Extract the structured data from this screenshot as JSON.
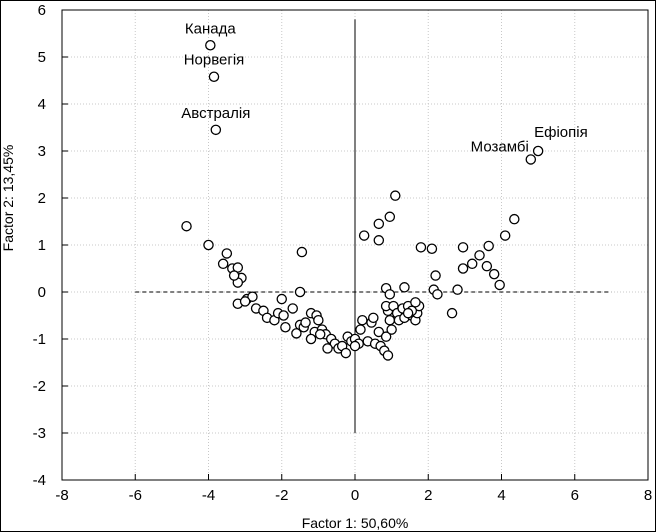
{
  "chart_data": {
    "type": "scatter",
    "xlabel": "Factor 1: 50,60%",
    "ylabel": "Factor 2: 13,45%",
    "xlim": [
      -8,
      8
    ],
    "ylim": [
      -4,
      6
    ],
    "x_ticks": [
      "-8",
      "-6",
      "-4",
      "-2",
      "0",
      "2",
      "4",
      "6",
      "8"
    ],
    "y_ticks": [
      "-4",
      "-3",
      "-2",
      "-1",
      "0",
      "1",
      "2",
      "3",
      "4",
      "5",
      "6"
    ],
    "grid": true,
    "reference_lines": {
      "horizontal": {
        "y": 0,
        "x_from": -6,
        "x_to": 7
      },
      "vertical": {
        "x": 0,
        "y_from": -3,
        "y_to": 5.8
      }
    },
    "annotations": [
      {
        "text": "Канада",
        "x": -3.95,
        "y": 5.25
      },
      {
        "text": "Норвегія",
        "x": -3.85,
        "y": 4.58
      },
      {
        "text": "Австралія",
        "x": -3.8,
        "y": 3.45
      },
      {
        "text": "Ефіопія",
        "x": 5.0,
        "y": 3.0
      },
      {
        "text": "Мозамбі",
        "x": 4.8,
        "y": 2.82
      }
    ],
    "points": [
      [
        -3.95,
        5.25
      ],
      [
        -3.85,
        4.58
      ],
      [
        -3.8,
        3.45
      ],
      [
        5.0,
        3.0
      ],
      [
        4.8,
        2.82
      ],
      [
        -4.6,
        1.4
      ],
      [
        -4.0,
        1.0
      ],
      [
        -3.5,
        0.82
      ],
      [
        -3.6,
        0.6
      ],
      [
        -3.35,
        0.5
      ],
      [
        -3.2,
        0.52
      ],
      [
        -3.1,
        0.3
      ],
      [
        -3.2,
        0.2
      ],
      [
        -3.3,
        0.35
      ],
      [
        -3.2,
        -0.25
      ],
      [
        -2.95,
        -0.15
      ],
      [
        -2.8,
        -0.1
      ],
      [
        -3.0,
        -0.2
      ],
      [
        -2.7,
        -0.35
      ],
      [
        -2.5,
        -0.4
      ],
      [
        -2.4,
        -0.55
      ],
      [
        -2.2,
        -0.6
      ],
      [
        -2.1,
        -0.45
      ],
      [
        -2.0,
        -0.15
      ],
      [
        -1.95,
        -0.5
      ],
      [
        -1.9,
        -0.75
      ],
      [
        -1.7,
        -0.35
      ],
      [
        -1.5,
        -0.7
      ],
      [
        -1.4,
        -0.75
      ],
      [
        -1.35,
        -0.65
      ],
      [
        -1.6,
        -0.88
      ],
      [
        -1.5,
        0.0
      ],
      [
        -1.45,
        0.85
      ],
      [
        -1.2,
        -0.45
      ],
      [
        -1.1,
        -0.85
      ],
      [
        -1.05,
        -0.5
      ],
      [
        -1.0,
        -0.6
      ],
      [
        -0.9,
        -0.8
      ],
      [
        -0.8,
        -0.9
      ],
      [
        -1.2,
        -1.0
      ],
      [
        -0.65,
        -1.0
      ],
      [
        -0.55,
        -1.1
      ],
      [
        -0.45,
        -1.2
      ],
      [
        -0.35,
        -1.15
      ],
      [
        -0.25,
        -1.3
      ],
      [
        -0.2,
        -0.95
      ],
      [
        -0.1,
        -1.05
      ],
      [
        0.0,
        -1.0
      ],
      [
        0.1,
        -1.1
      ],
      [
        0.0,
        -1.15
      ],
      [
        -0.95,
        -0.9
      ],
      [
        -0.75,
        -1.2
      ],
      [
        0.15,
        -0.8
      ],
      [
        0.2,
        -0.6
      ],
      [
        0.35,
        -1.05
      ],
      [
        0.45,
        -0.65
      ],
      [
        0.5,
        -0.55
      ],
      [
        0.55,
        -1.1
      ],
      [
        0.65,
        -0.85
      ],
      [
        0.7,
        -1.15
      ],
      [
        0.8,
        -1.25
      ],
      [
        0.9,
        -1.35
      ],
      [
        0.85,
        -0.95
      ],
      [
        1.0,
        -0.8
      ],
      [
        0.9,
        -0.4
      ],
      [
        0.85,
        -0.3
      ],
      [
        0.95,
        -0.6
      ],
      [
        1.05,
        -0.3
      ],
      [
        1.15,
        -0.45
      ],
      [
        1.2,
        -0.6
      ],
      [
        1.35,
        -0.55
      ],
      [
        1.3,
        -0.35
      ],
      [
        1.45,
        -0.3
      ],
      [
        1.55,
        -0.5
      ],
      [
        1.65,
        -0.6
      ],
      [
        1.7,
        -0.45
      ],
      [
        1.75,
        -0.3
      ],
      [
        1.65,
        -0.22
      ],
      [
        1.55,
        -0.4
      ],
      [
        1.45,
        -0.45
      ],
      [
        1.35,
        0.1
      ],
      [
        0.85,
        0.08
      ],
      [
        0.95,
        -0.05
      ],
      [
        0.25,
        1.2
      ],
      [
        0.65,
        1.1
      ],
      [
        0.65,
        1.45
      ],
      [
        0.95,
        1.6
      ],
      [
        1.1,
        2.05
      ],
      [
        1.8,
        0.95
      ],
      [
        2.1,
        0.92
      ],
      [
        2.2,
        0.35
      ],
      [
        2.15,
        0.05
      ],
      [
        2.25,
        -0.05
      ],
      [
        2.65,
        -0.45
      ],
      [
        2.8,
        0.05
      ],
      [
        2.95,
        0.95
      ],
      [
        2.95,
        0.5
      ],
      [
        3.2,
        0.6
      ],
      [
        3.4,
        0.78
      ],
      [
        3.6,
        0.55
      ],
      [
        3.65,
        0.98
      ],
      [
        3.8,
        0.38
      ],
      [
        3.95,
        0.15
      ],
      [
        4.1,
        1.2
      ],
      [
        4.35,
        1.55
      ]
    ]
  }
}
